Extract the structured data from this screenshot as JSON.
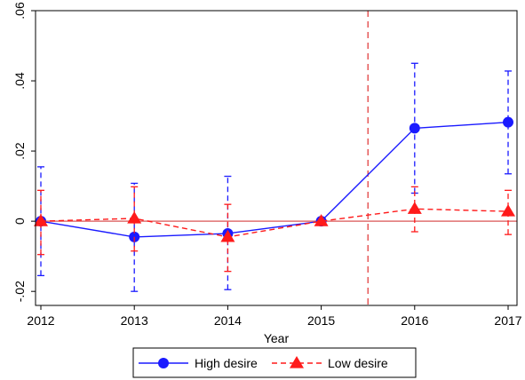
{
  "chart_data": {
    "type": "line",
    "xlabel": "Year",
    "ylabel": "",
    "x": [
      2012,
      2013,
      2014,
      2015,
      2016,
      2017
    ],
    "xticks": [
      "2012",
      "2013",
      "2014",
      "2015",
      "2016",
      "2017"
    ],
    "xlim": [
      2012,
      2017
    ],
    "ylim": [
      -0.024,
      0.06
    ],
    "yticks": [
      -0.02,
      0,
      0.02,
      0.04,
      0.06
    ],
    "ytick_labels": [
      "-.02",
      "0",
      ".02",
      ".04",
      ".06"
    ],
    "reference_lines": {
      "horizontal_y": 0,
      "horizontal_color": "#e07070",
      "vertical_x": 2015.5,
      "vertical_color": "#e03030"
    },
    "legend_position": "bottom",
    "series": [
      {
        "name": "High desire",
        "color": "#1a1aff",
        "line_style": "solid",
        "marker": "circle",
        "values": [
          0.0,
          -0.0045,
          -0.0035,
          0.0,
          0.0265,
          0.0282
        ],
        "ci_low": [
          -0.0155,
          -0.02,
          -0.0195,
          0.0,
          0.008,
          0.0135
        ],
        "ci_high": [
          0.0155,
          0.0108,
          0.0128,
          0.0,
          0.045,
          0.0428
        ]
      },
      {
        "name": "Low desire",
        "color": "#ff1a1a",
        "line_style": "dashed",
        "marker": "triangle",
        "values": [
          0.0,
          0.0008,
          -0.0045,
          0.0,
          0.0035,
          0.0028
        ],
        "ci_low": [
          -0.0095,
          -0.0085,
          -0.0143,
          0.0,
          -0.003,
          -0.0038
        ],
        "ci_high": [
          0.0088,
          0.0098,
          0.0048,
          0.0,
          0.0098,
          0.0088
        ]
      }
    ]
  }
}
